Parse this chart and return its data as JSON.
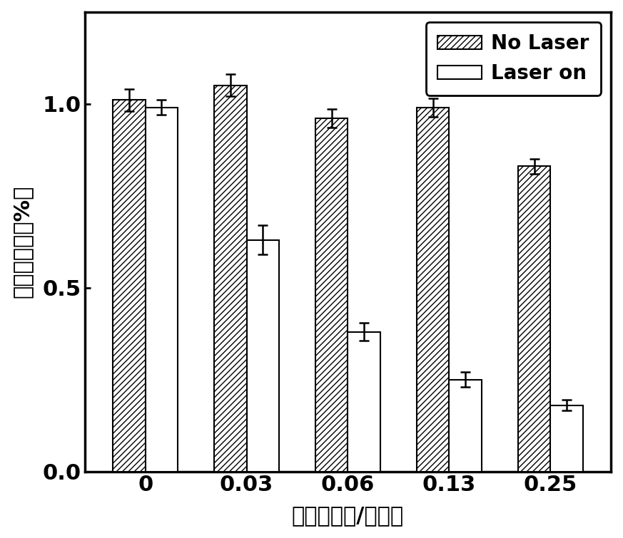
{
  "categories": [
    "0",
    "0.03",
    "0.06",
    "0.13",
    "0.25"
  ],
  "no_laser_values": [
    1.01,
    1.05,
    0.96,
    0.99,
    0.83
  ],
  "no_laser_errors": [
    0.03,
    0.03,
    0.025,
    0.025,
    0.02
  ],
  "laser_on_values": [
    0.99,
    0.63,
    0.38,
    0.25,
    0.18
  ],
  "laser_on_errors": [
    0.02,
    0.04,
    0.025,
    0.02,
    0.015
  ],
  "xlabel": "浓度（毫克/毫升）",
  "ylabel": "细胞存活率（%）",
  "ylim": [
    0.0,
    1.25
  ],
  "yticks": [
    0.0,
    0.5,
    1.0
  ],
  "bar_width": 0.32,
  "hatch_pattern": "////",
  "legend_no_laser": "No Laser",
  "legend_laser_on": "Laser on",
  "figure_width": 8.73,
  "figure_height": 7.55,
  "dpi": 100,
  "background_color": "#ffffff",
  "spine_linewidth": 2.5,
  "tick_fontsize": 22,
  "label_fontsize": 22,
  "legend_fontsize": 20
}
